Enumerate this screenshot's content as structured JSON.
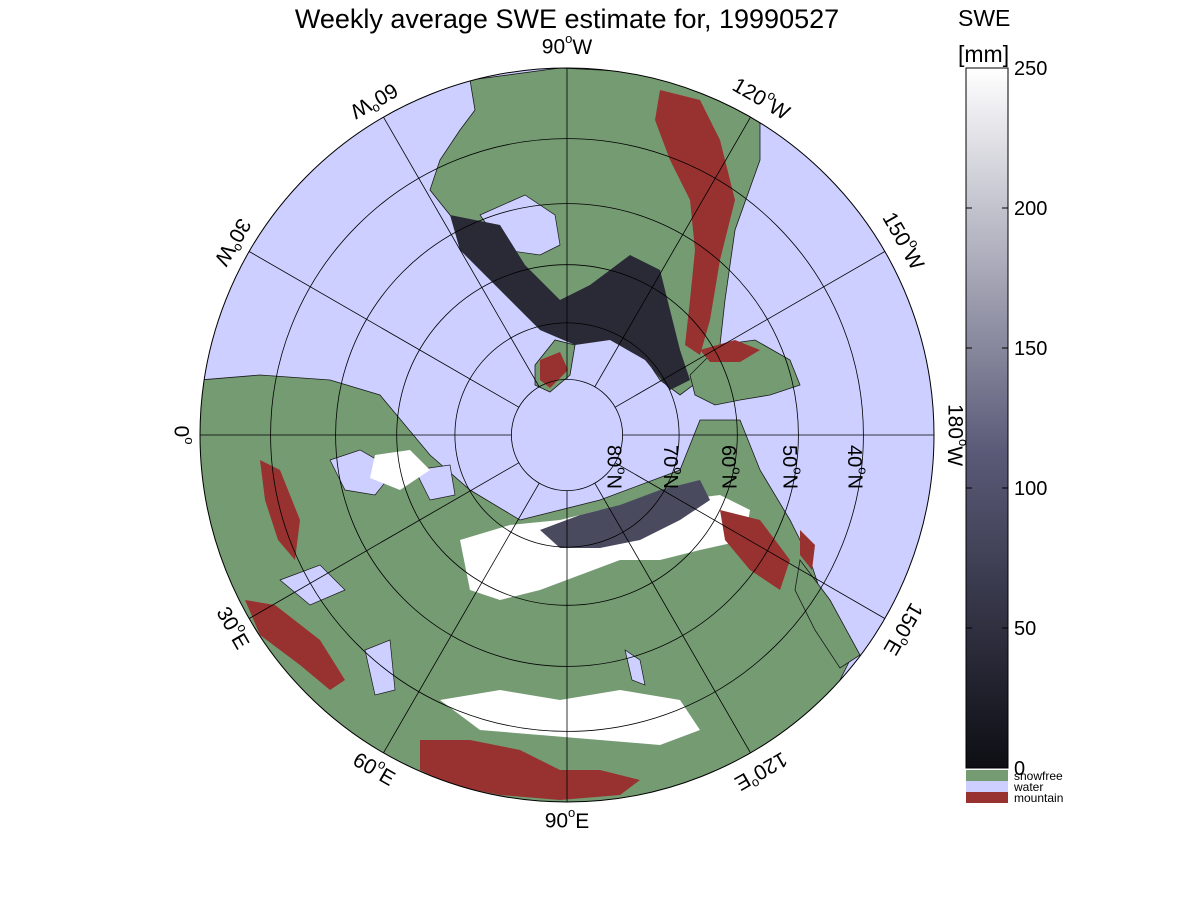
{
  "title": "Weekly average SWE estimate for, 19990527",
  "colorbar": {
    "label_line1": "SWE",
    "label_line2": "[mm]",
    "ticks": [
      {
        "value": 250,
        "label": "250"
      },
      {
        "value": 200,
        "label": "200"
      },
      {
        "value": 150,
        "label": "150"
      },
      {
        "value": 100,
        "label": "100"
      },
      {
        "value": 50,
        "label": "50"
      },
      {
        "value": 0,
        "label": "0"
      }
    ],
    "range": [
      0,
      250
    ],
    "gradient_low": "#0e0e14",
    "gradient_mid": "#5a5a78",
    "gradient_high": "#ffffff",
    "classes": [
      {
        "key": "snowfree",
        "label": "snowfree",
        "color": "#759b73"
      },
      {
        "key": "water",
        "label": "water",
        "color": "#cccfff"
      },
      {
        "key": "mountain",
        "label": "mountain",
        "color": "#983230"
      }
    ]
  },
  "map": {
    "projection": "north-polar-stereographic",
    "water_color": "#cccfff",
    "land_color": "#759b73",
    "mountain_color": "#983230",
    "snow_dark": "#2a2a36",
    "snow_white": "#ffffff",
    "longitude_labels": [
      {
        "deg": 90,
        "label": "90°W",
        "num": "90",
        "hemi": "W"
      },
      {
        "deg": 120,
        "label": "120°W",
        "num": "120",
        "hemi": "W"
      },
      {
        "deg": 150,
        "label": "150°W",
        "num": "150",
        "hemi": "W"
      },
      {
        "deg": 180,
        "label": "180°W",
        "num": "180",
        "hemi": "W"
      },
      {
        "deg": 210,
        "label": "150°E",
        "num": "150",
        "hemi": "E"
      },
      {
        "deg": 240,
        "label": "120°E",
        "num": "120",
        "hemi": "E"
      },
      {
        "deg": 270,
        "label": "90°E",
        "num": "90",
        "hemi": "E"
      },
      {
        "deg": 300,
        "label": "60°E",
        "num": "60",
        "hemi": "E"
      },
      {
        "deg": 330,
        "label": "30°E",
        "num": "30",
        "hemi": "E"
      },
      {
        "deg": 0,
        "label": "0°",
        "num": "0",
        "hemi": ""
      },
      {
        "deg": 30,
        "label": "30°W",
        "num": "30",
        "hemi": "W"
      },
      {
        "deg": 60,
        "label": "60°W",
        "num": "60",
        "hemi": "W"
      }
    ],
    "latitude_labels": [
      {
        "lat": 80,
        "label": "80°N"
      },
      {
        "lat": 70,
        "label": "70°N"
      },
      {
        "lat": 60,
        "label": "60°N"
      },
      {
        "lat": 50,
        "label": "50°N"
      },
      {
        "lat": 40,
        "label": "40°N"
      }
    ]
  }
}
